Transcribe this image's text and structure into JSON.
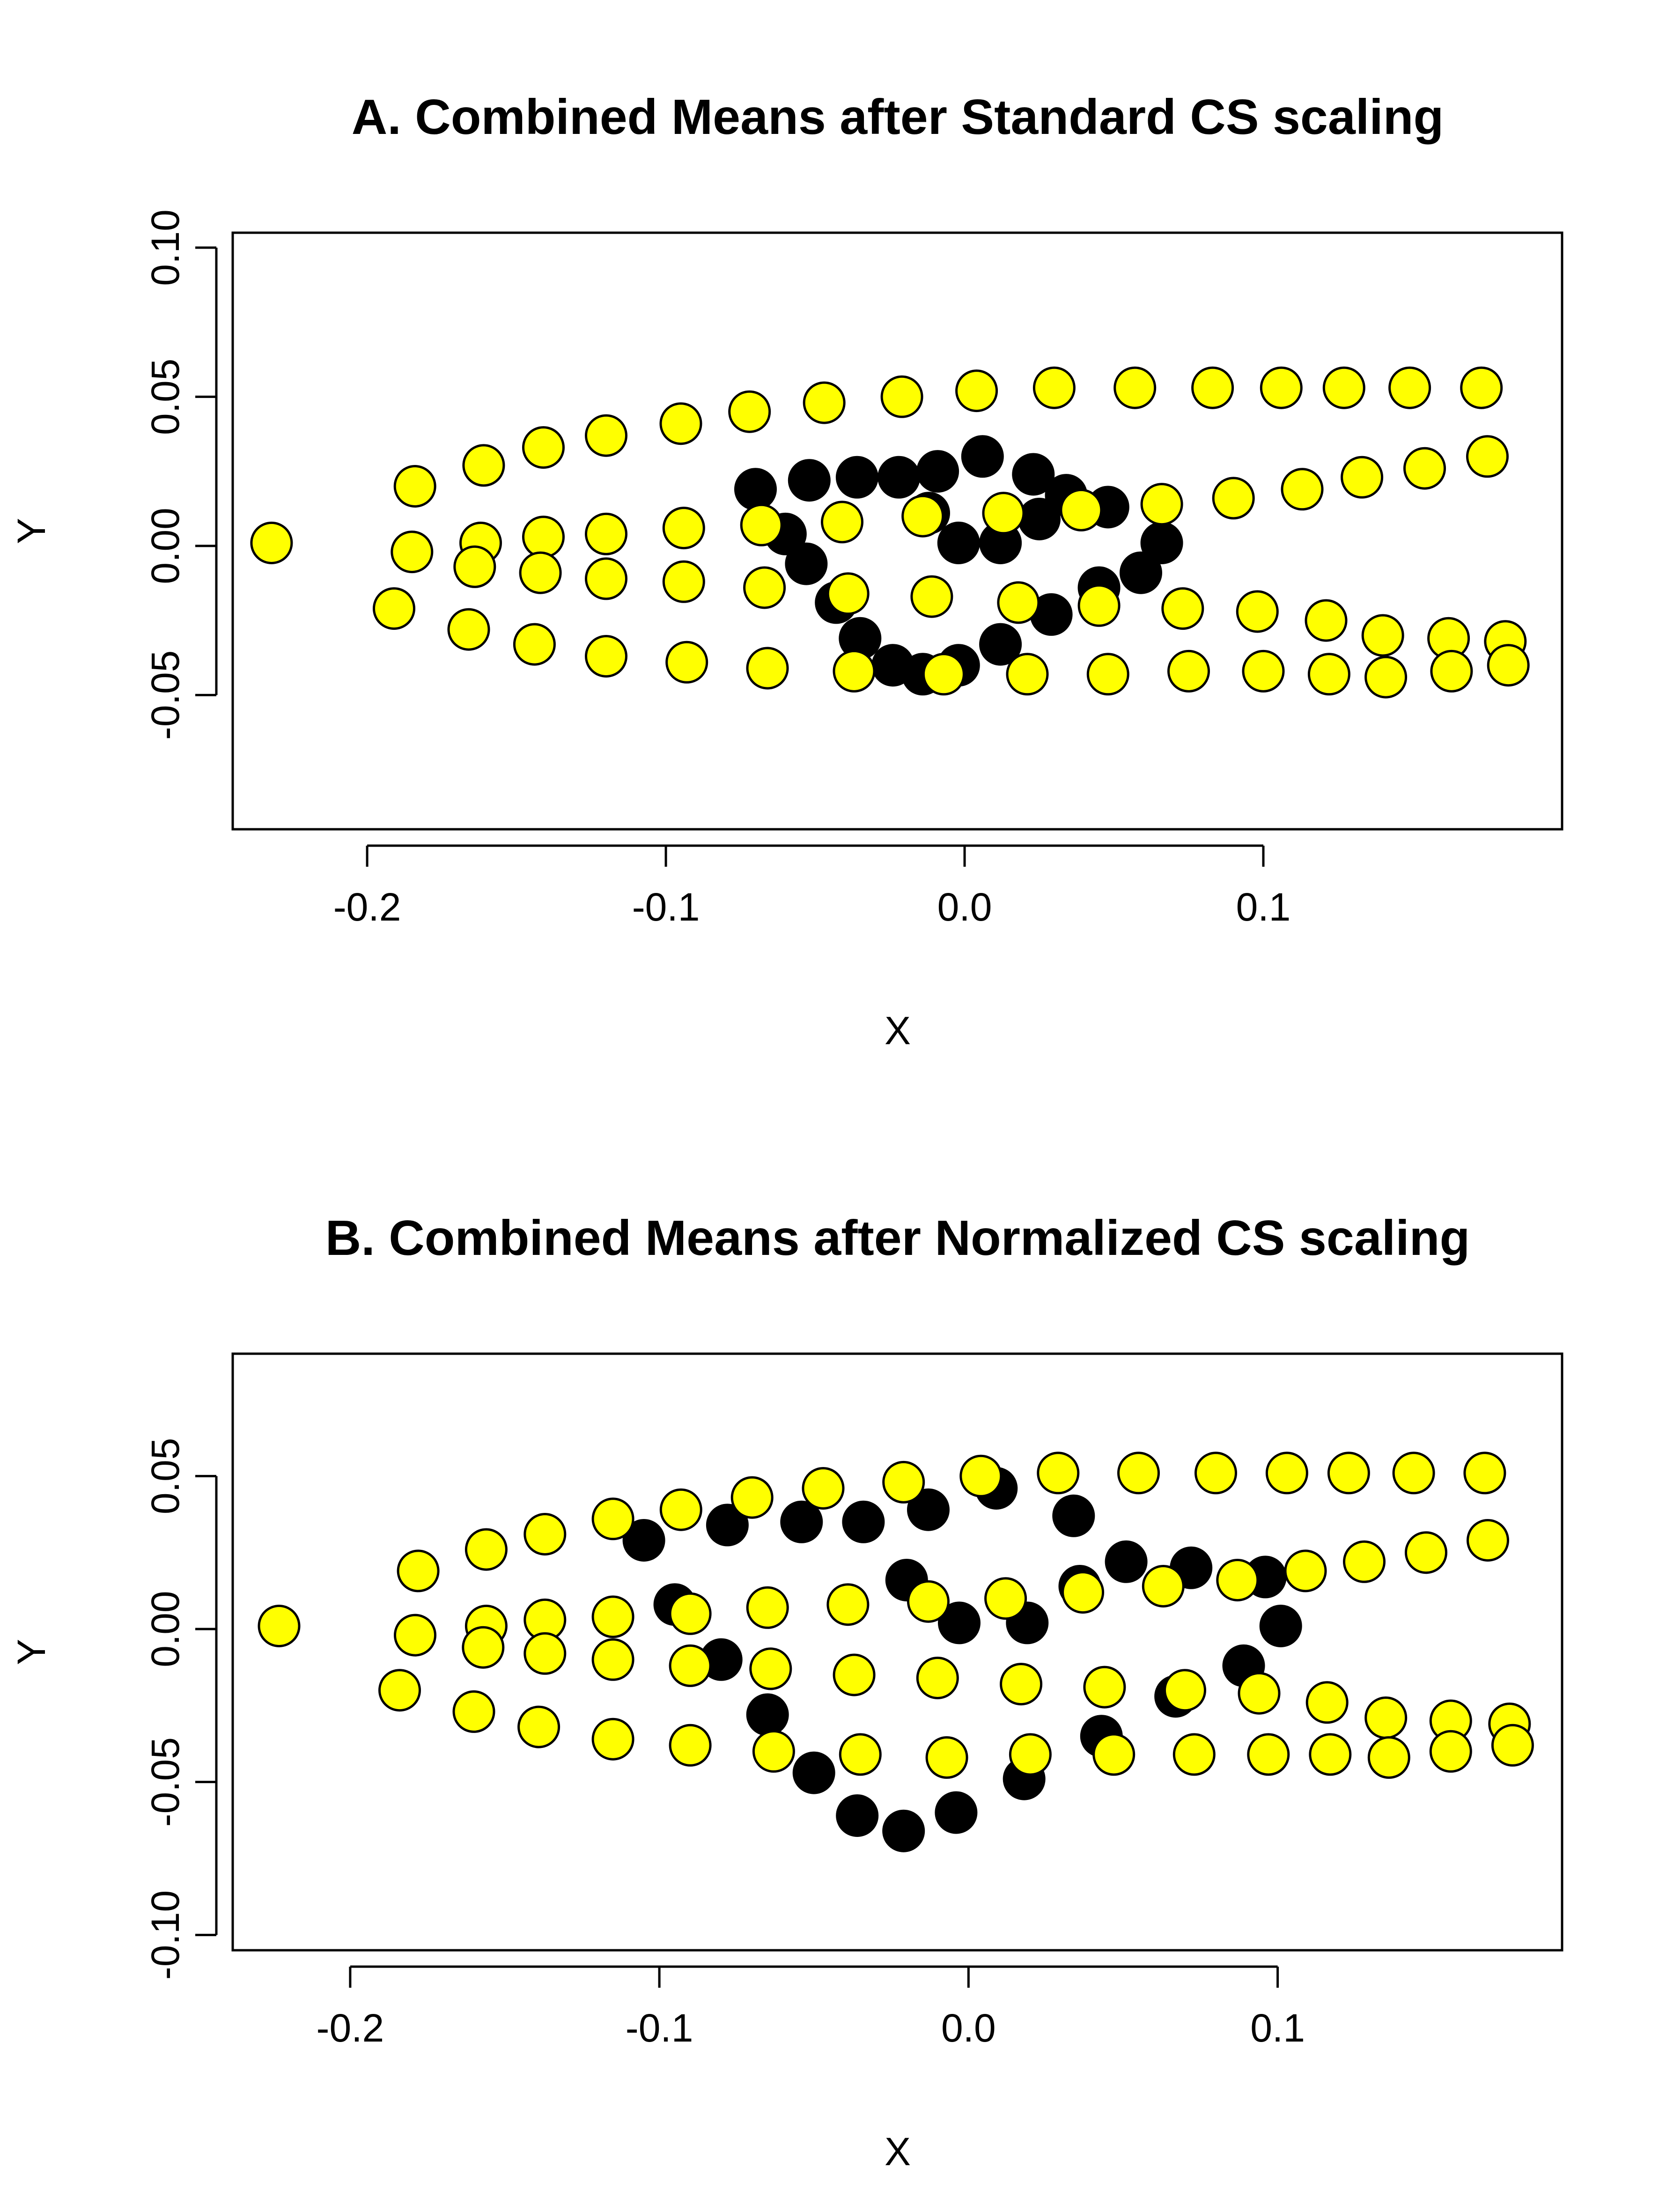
{
  "colors": {
    "black_points": "#000000",
    "yellow_points": "#ffff00"
  },
  "chart_data": [
    {
      "type": "scatter",
      "title": "A. Combined Means after Standard CS scaling",
      "xlabel": "X",
      "ylabel": "Y",
      "xlim": [
        -0.245,
        0.2
      ],
      "ylim": [
        -0.095,
        0.105
      ],
      "xticks": [
        -0.2,
        -0.1,
        0.0,
        0.1
      ],
      "xtick_labels": [
        "-0.2",
        "-0.1",
        "0.0",
        "0.1"
      ],
      "yticks": [
        -0.05,
        0.0,
        0.05,
        0.1
      ],
      "ytick_labels": [
        "-0.05",
        "0.00",
        "0.05",
        "0.10"
      ],
      "grid": false,
      "series": [
        {
          "color": "#000000",
          "points": [
            [
              -0.07,
              0.019
            ],
            [
              -0.052,
              0.022
            ],
            [
              -0.036,
              0.023
            ],
            [
              -0.022,
              0.023
            ],
            [
              -0.009,
              0.025
            ],
            [
              0.006,
              0.03
            ],
            [
              0.023,
              0.024
            ],
            [
              0.034,
              0.017
            ],
            [
              0.048,
              0.013
            ],
            [
              0.066,
              0.001
            ],
            [
              0.059,
              -0.009
            ],
            [
              0.045,
              -0.014
            ],
            [
              0.029,
              -0.023
            ],
            [
              0.012,
              -0.033
            ],
            [
              -0.002,
              -0.04
            ],
            [
              -0.014,
              -0.043
            ],
            [
              -0.024,
              -0.04
            ],
            [
              -0.035,
              -0.031
            ],
            [
              -0.043,
              -0.019
            ],
            [
              -0.053,
              -0.006
            ],
            [
              -0.06,
              0.004
            ],
            [
              -0.012,
              0.011
            ],
            [
              -0.002,
              0.001
            ],
            [
              0.012,
              0.001
            ],
            [
              0.025,
              0.009
            ]
          ]
        },
        {
          "color": "#ffff00",
          "points": [
            [
              -0.232,
              0.001
            ],
            [
              -0.184,
              0.02
            ],
            [
              -0.161,
              0.027
            ],
            [
              -0.141,
              0.033
            ],
            [
              -0.12,
              0.037
            ],
            [
              -0.095,
              0.041
            ],
            [
              -0.072,
              0.045
            ],
            [
              -0.047,
              0.048
            ],
            [
              -0.021,
              0.05
            ],
            [
              0.004,
              0.052
            ],
            [
              0.03,
              0.053
            ],
            [
              0.057,
              0.053
            ],
            [
              0.083,
              0.053
            ],
            [
              0.106,
              0.053
            ],
            [
              0.127,
              0.053
            ],
            [
              0.149,
              0.053
            ],
            [
              0.173,
              0.053
            ],
            [
              -0.185,
              -0.002
            ],
            [
              -0.162,
              0.001
            ],
            [
              -0.141,
              0.003
            ],
            [
              -0.12,
              0.004
            ],
            [
              -0.094,
              0.006
            ],
            [
              -0.068,
              0.007
            ],
            [
              -0.041,
              0.008
            ],
            [
              -0.014,
              0.01
            ],
            [
              0.013,
              0.011
            ],
            [
              0.039,
              0.012
            ],
            [
              0.066,
              0.014
            ],
            [
              0.09,
              0.016
            ],
            [
              0.113,
              0.019
            ],
            [
              0.133,
              0.023
            ],
            [
              0.154,
              0.026
            ],
            [
              0.175,
              0.03
            ],
            [
              -0.164,
              -0.007
            ],
            [
              -0.142,
              -0.009
            ],
            [
              -0.12,
              -0.011
            ],
            [
              -0.094,
              -0.012
            ],
            [
              -0.067,
              -0.014
            ],
            [
              -0.039,
              -0.016
            ],
            [
              -0.011,
              -0.017
            ],
            [
              0.018,
              -0.019
            ],
            [
              0.045,
              -0.02
            ],
            [
              0.073,
              -0.021
            ],
            [
              0.098,
              -0.022
            ],
            [
              0.121,
              -0.025
            ],
            [
              0.14,
              -0.03
            ],
            [
              0.162,
              -0.031
            ],
            [
              0.181,
              -0.032
            ],
            [
              -0.191,
              -0.021
            ],
            [
              -0.166,
              -0.028
            ],
            [
              -0.144,
              -0.033
            ],
            [
              -0.12,
              -0.037
            ],
            [
              -0.093,
              -0.039
            ],
            [
              -0.066,
              -0.041
            ],
            [
              -0.037,
              -0.042
            ],
            [
              -0.007,
              -0.043
            ],
            [
              0.021,
              -0.043
            ],
            [
              0.048,
              -0.043
            ],
            [
              0.075,
              -0.042
            ],
            [
              0.1,
              -0.042
            ],
            [
              0.122,
              -0.043
            ],
            [
              0.141,
              -0.044
            ],
            [
              0.163,
              -0.042
            ],
            [
              0.182,
              -0.04
            ]
          ]
        }
      ]
    },
    {
      "type": "scatter",
      "title": "B. Combined Means after Normalized CS scaling",
      "xlabel": "X",
      "ylabel": "Y",
      "xlim": [
        -0.238,
        0.192
      ],
      "ylim": [
        -0.105,
        0.09
      ],
      "xticks": [
        -0.2,
        -0.1,
        0.0,
        0.1
      ],
      "xtick_labels": [
        "-0.2",
        "-0.1",
        "0.0",
        "0.1"
      ],
      "yticks": [
        -0.1,
        -0.05,
        0.0,
        0.05
      ],
      "ytick_labels": [
        "-0.10",
        "-0.05",
        "0.00",
        "0.05"
      ],
      "grid": false,
      "series": [
        {
          "color": "#000000",
          "points": [
            [
              -0.105,
              0.029
            ],
            [
              -0.078,
              0.034
            ],
            [
              -0.054,
              0.035
            ],
            [
              -0.034,
              0.035
            ],
            [
              -0.013,
              0.039
            ],
            [
              0.009,
              0.046
            ],
            [
              0.034,
              0.037
            ],
            [
              0.051,
              0.022
            ],
            [
              0.072,
              0.02
            ],
            [
              0.096,
              0.017
            ],
            [
              0.101,
              0.001
            ],
            [
              0.089,
              -0.012
            ],
            [
              0.067,
              -0.022
            ],
            [
              0.043,
              -0.035
            ],
            [
              0.018,
              -0.049
            ],
            [
              -0.004,
              -0.06
            ],
            [
              -0.021,
              -0.066
            ],
            [
              -0.036,
              -0.061
            ],
            [
              -0.05,
              -0.047
            ],
            [
              -0.065,
              -0.028
            ],
            [
              -0.08,
              -0.01
            ],
            [
              -0.095,
              0.008
            ],
            [
              -0.02,
              0.016
            ],
            [
              -0.003,
              0.002
            ],
            [
              0.019,
              0.002
            ],
            [
              0.036,
              0.014
            ]
          ]
        },
        {
          "color": "#ffff00",
          "points": [
            [
              -0.223,
              0.001
            ],
            [
              -0.178,
              0.019
            ],
            [
              -0.156,
              0.026
            ],
            [
              -0.137,
              0.031
            ],
            [
              -0.115,
              0.036
            ],
            [
              -0.093,
              0.039
            ],
            [
              -0.07,
              0.043
            ],
            [
              -0.047,
              0.046
            ],
            [
              -0.021,
              0.048
            ],
            [
              0.004,
              0.05
            ],
            [
              0.029,
              0.051
            ],
            [
              0.055,
              0.051
            ],
            [
              0.08,
              0.051
            ],
            [
              0.103,
              0.051
            ],
            [
              0.123,
              0.051
            ],
            [
              0.144,
              0.051
            ],
            [
              0.167,
              0.051
            ],
            [
              -0.179,
              -0.002
            ],
            [
              -0.156,
              0.001
            ],
            [
              -0.137,
              0.003
            ],
            [
              -0.115,
              0.004
            ],
            [
              -0.09,
              0.005
            ],
            [
              -0.065,
              0.007
            ],
            [
              -0.039,
              0.008
            ],
            [
              -0.013,
              0.009
            ],
            [
              0.012,
              0.01
            ],
            [
              0.037,
              0.012
            ],
            [
              0.063,
              0.014
            ],
            [
              0.087,
              0.016
            ],
            [
              0.109,
              0.019
            ],
            [
              0.128,
              0.022
            ],
            [
              0.148,
              0.025
            ],
            [
              0.168,
              0.029
            ],
            [
              -0.157,
              -0.006
            ],
            [
              -0.137,
              -0.008
            ],
            [
              -0.115,
              -0.01
            ],
            [
              -0.09,
              -0.012
            ],
            [
              -0.064,
              -0.013
            ],
            [
              -0.037,
              -0.015
            ],
            [
              -0.01,
              -0.016
            ],
            [
              0.017,
              -0.018
            ],
            [
              0.044,
              -0.019
            ],
            [
              0.07,
              -0.02
            ],
            [
              0.094,
              -0.021
            ],
            [
              0.116,
              -0.024
            ],
            [
              0.135,
              -0.029
            ],
            [
              0.156,
              -0.03
            ],
            [
              0.175,
              -0.031
            ],
            [
              -0.184,
              -0.02
            ],
            [
              -0.16,
              -0.027
            ],
            [
              -0.139,
              -0.032
            ],
            [
              -0.115,
              -0.036
            ],
            [
              -0.09,
              -0.038
            ],
            [
              -0.063,
              -0.04
            ],
            [
              -0.035,
              -0.041
            ],
            [
              -0.007,
              -0.042
            ],
            [
              0.02,
              -0.041
            ],
            [
              0.047,
              -0.041
            ],
            [
              0.073,
              -0.041
            ],
            [
              0.097,
              -0.041
            ],
            [
              0.117,
              -0.041
            ],
            [
              0.136,
              -0.042
            ],
            [
              0.156,
              -0.04
            ],
            [
              0.176,
              -0.038
            ]
          ]
        }
      ]
    }
  ]
}
